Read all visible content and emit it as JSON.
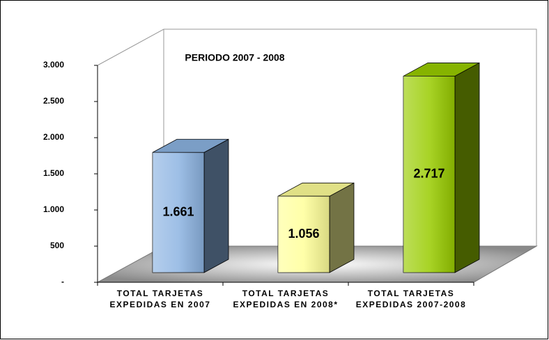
{
  "chart_data": {
    "type": "bar3d",
    "title": "PERIODO 2007 - 2008",
    "categories": [
      "TOTAL TARJETAS EXPEDIDAS EN 2007",
      "TOTAL TARJETAS EXPEDIDAS EN 2008*",
      "TOTAL TARJETAS EXPEDIDAS 2007-2008"
    ],
    "values": [
      1661,
      1056,
      2717
    ],
    "value_labels": [
      "1.661",
      "1.056",
      "2.717"
    ],
    "colors": [
      "#8db4e2",
      "#ffff99",
      "#99cc00"
    ],
    "ylim": [
      0,
      3000
    ],
    "yticks": [
      {
        "value": 0,
        "label": "-"
      },
      500,
      {
        "value": 1000,
        "label": "1.000"
      },
      {
        "value": 1500,
        "label": "1.500"
      },
      {
        "value": 2000,
        "label": "2.000"
      },
      {
        "value": 2500,
        "label": "2.500"
      },
      {
        "value": 3000,
        "label": "3.000"
      }
    ],
    "grid": false
  }
}
